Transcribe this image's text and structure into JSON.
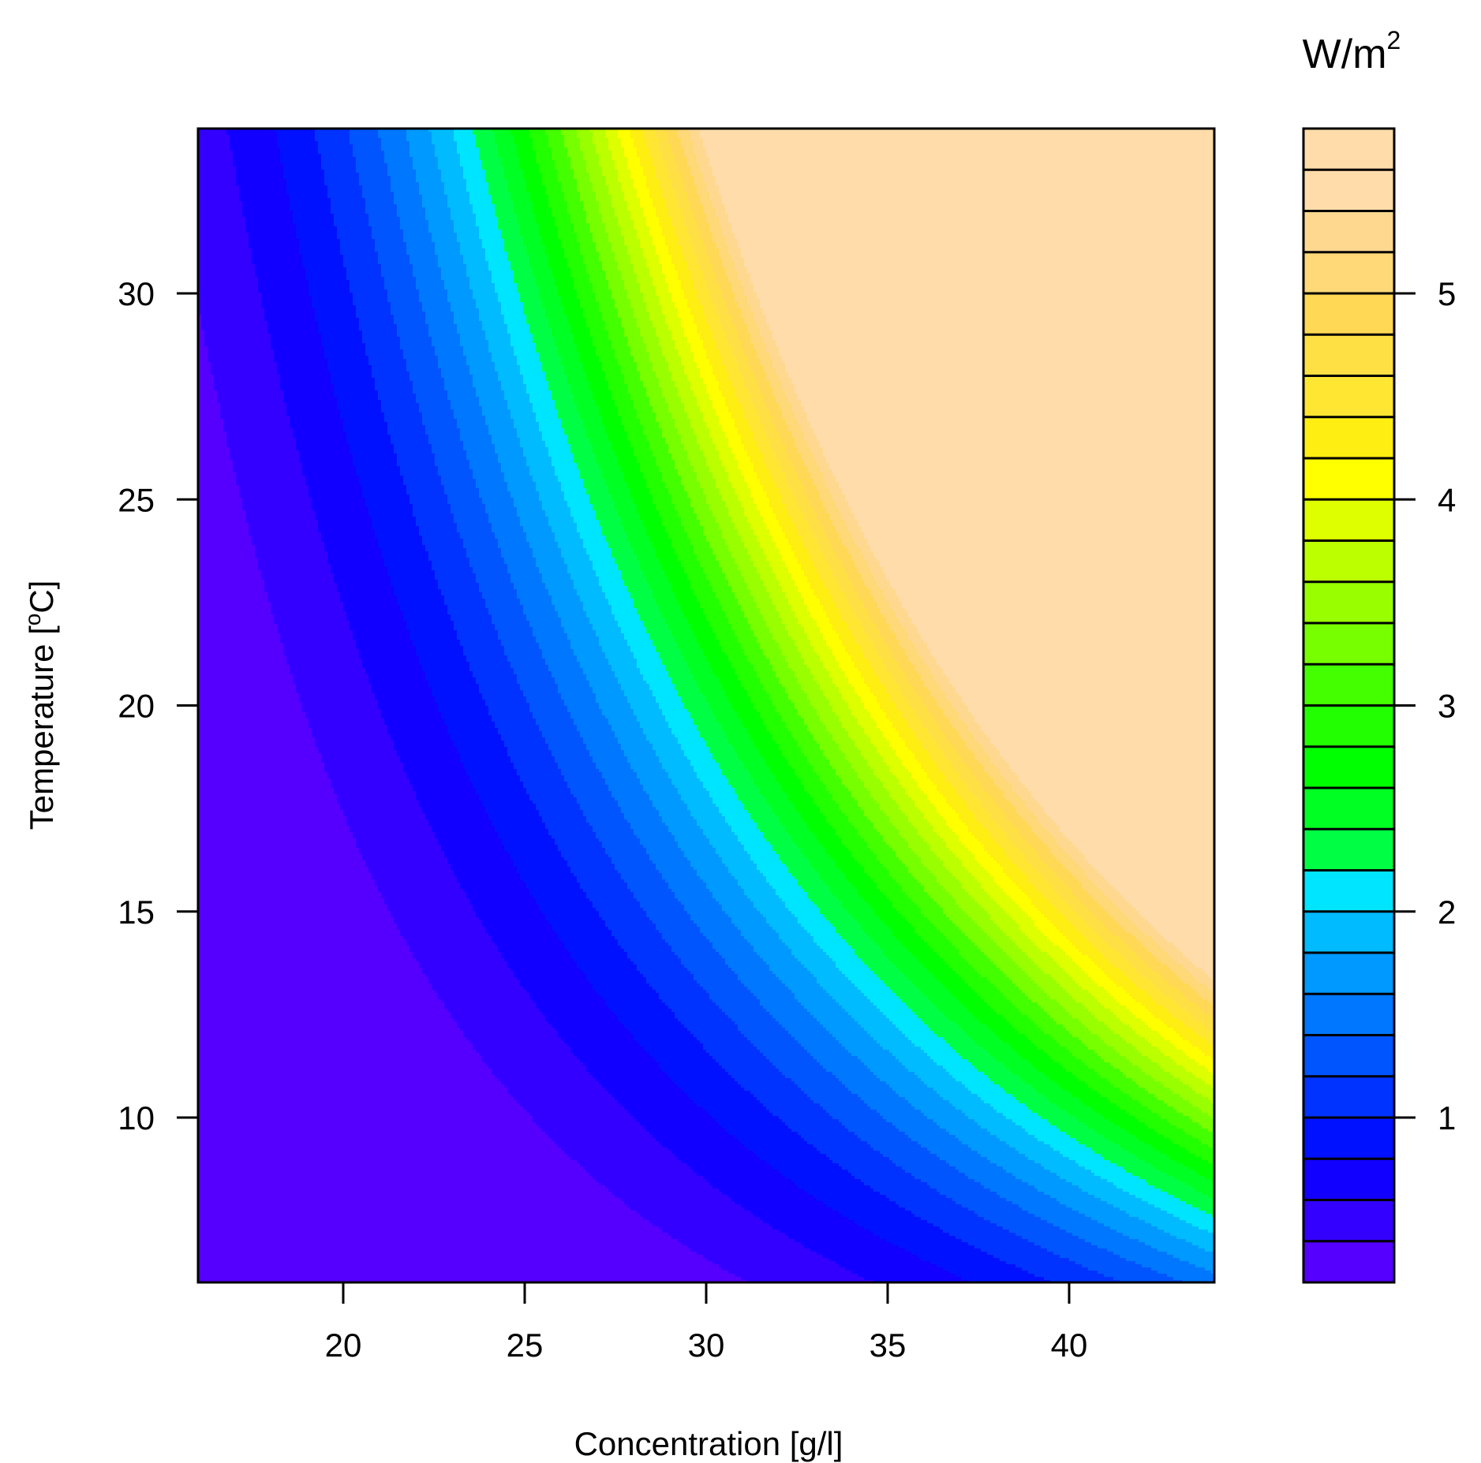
{
  "chart_data": {
    "type": "heatmap",
    "title": "",
    "xlabel": "Concentration [g/l]",
    "ylabel_text": "Temperature [",
    "ylabel_sup": "o",
    "ylabel_tail": "C]",
    "legend_title_text": "W/m",
    "legend_title_sup": "2",
    "xlim": [
      16,
      44
    ],
    "ylim": [
      6,
      34
    ],
    "x_ticks": [
      20,
      25,
      30,
      35,
      40
    ],
    "y_ticks": [
      10,
      15,
      20,
      25,
      30
    ],
    "levels": {
      "min": 0.2,
      "max": 5.8,
      "step": 0.2,
      "ticks": [
        1,
        2,
        3,
        4,
        5
      ]
    },
    "colors": [
      "#5500ff",
      "#3300ff",
      "#1100ff",
      "#0011ff",
      "#0033ff",
      "#0055ff",
      "#0077ff",
      "#0099ff",
      "#00bbff",
      "#00e5ff",
      "#00ff44",
      "#00ff22",
      "#00ff00",
      "#22ff00",
      "#44ff00",
      "#77ff00",
      "#99ff00",
      "#bbff00",
      "#ddff00",
      "#ffff00",
      "#ffee11",
      "#ffe633",
      "#ffe044",
      "#ffd855",
      "#ffd877",
      "#ffd890",
      "#ffdcaa",
      "#ffdcaa"
    ],
    "surface_model": "z = 1.52 * ((x/26.7)^3.84 * (y/20)^1.6)",
    "grid": false,
    "legend_placement": "right"
  }
}
